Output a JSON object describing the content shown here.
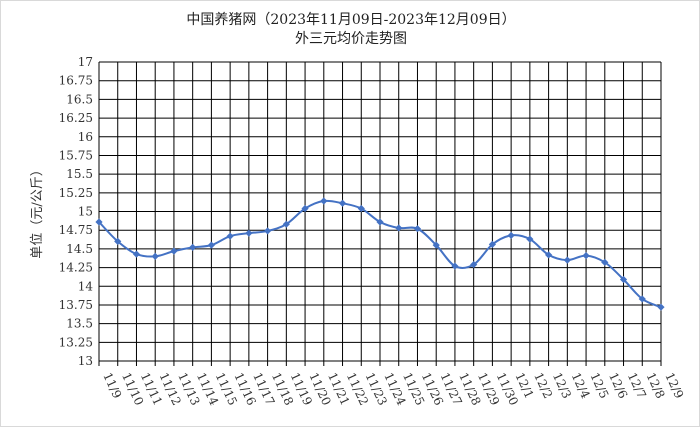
{
  "chart_data": {
    "type": "line",
    "title": "中国养猪网（2023年11月09日-2023年12月09日）",
    "subtitle": "外三元均价走势图",
    "ylabel": "单位（元/公斤）",
    "xlabel": "",
    "ylim": [
      13,
      17
    ],
    "yticks": [
      "13",
      "13.25",
      "13.5",
      "13.75",
      "14",
      "14.25",
      "14.5",
      "14.75",
      "15",
      "15.25",
      "15.5",
      "15.75",
      "16",
      "16.25",
      "16.5",
      "16.75",
      "17"
    ],
    "grid": true,
    "legend": "none",
    "line_color": "#4472c4",
    "categories": [
      "11/9",
      "11/10",
      "11/11",
      "11/12",
      "11/13",
      "11/14",
      "11/15",
      "11/16",
      "11/17",
      "11/18",
      "11/19",
      "11/20",
      "11/21",
      "11/22",
      "11/23",
      "11/24",
      "11/25",
      "11/26",
      "11/27",
      "11/28",
      "11/29",
      "11/30",
      "12/1",
      "12/2",
      "12/3",
      "12/4",
      "12/5",
      "12/6",
      "12/7",
      "12/8",
      "12/9"
    ],
    "values": [
      14.86,
      14.6,
      14.43,
      14.4,
      14.47,
      14.52,
      14.55,
      14.67,
      14.71,
      14.74,
      14.83,
      15.04,
      15.14,
      15.11,
      15.04,
      14.86,
      14.78,
      14.77,
      14.55,
      14.27,
      14.29,
      14.56,
      14.68,
      14.63,
      14.42,
      14.35,
      14.41,
      14.32,
      14.09,
      13.83,
      13.72
    ]
  }
}
